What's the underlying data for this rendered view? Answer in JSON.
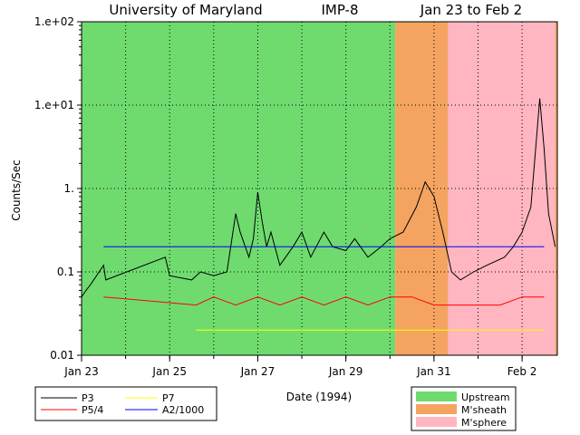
{
  "chart_data": {
    "type": "line",
    "title_parts": [
      "University of Maryland",
      "IMP-8",
      "Jan 23 to Feb 2"
    ],
    "xlabel": "Date (1994)",
    "ylabel": "Counts/Sec",
    "yscale": "log",
    "ylim": [
      0.01,
      100
    ],
    "xlim_days": [
      0,
      10.8
    ],
    "x_ticks": [
      {
        "day": 0,
        "label": "Jan 23"
      },
      {
        "day": 2,
        "label": "Jan 25"
      },
      {
        "day": 4,
        "label": "Jan 27"
      },
      {
        "day": 6,
        "label": "Jan 29"
      },
      {
        "day": 8,
        "label": "Jan 31"
      },
      {
        "day": 10,
        "label": "Feb 2"
      }
    ],
    "y_ticks": [
      {
        "value": 100,
        "label": "1.e+02"
      },
      {
        "value": 10,
        "label": "1.e+01"
      },
      {
        "value": 1,
        "label": "1."
      },
      {
        "value": 0.1,
        "label": "0.1"
      },
      {
        "value": 0.01,
        "label": "0.01"
      }
    ],
    "regions": [
      {
        "name": "Upstream",
        "start_day": 0,
        "end_day": 7.12,
        "color": "#6fdb6f"
      },
      {
        "name": "M'sheath",
        "start_day": 7.12,
        "end_day": 8.32,
        "color": "#f4a460"
      },
      {
        "name": "M'sphere",
        "start_day": 8.32,
        "end_day": 10.75,
        "color": "#ffb6c1"
      },
      {
        "name": "M'sheath",
        "start_day": 10.75,
        "end_day": 10.8,
        "color": "#f4a460"
      }
    ],
    "series": [
      {
        "name": "P3",
        "color": "#000000",
        "points": [
          [
            0.0,
            0.05
          ],
          [
            0.1,
            0.06
          ],
          [
            0.2,
            0.07
          ],
          [
            0.5,
            0.12
          ],
          [
            0.55,
            0.08
          ],
          [
            1.9,
            0.15
          ],
          [
            2.0,
            0.09
          ],
          [
            2.5,
            0.08
          ],
          [
            2.7,
            0.1
          ],
          [
            3.0,
            0.09
          ],
          [
            3.3,
            0.1
          ],
          [
            3.5,
            0.5
          ],
          [
            3.6,
            0.3
          ],
          [
            3.8,
            0.15
          ],
          [
            3.9,
            0.25
          ],
          [
            4.0,
            0.9
          ],
          [
            4.1,
            0.4
          ],
          [
            4.2,
            0.2
          ],
          [
            4.3,
            0.3
          ],
          [
            4.5,
            0.12
          ],
          [
            4.8,
            0.2
          ],
          [
            5.0,
            0.3
          ],
          [
            5.2,
            0.15
          ],
          [
            5.5,
            0.3
          ],
          [
            5.7,
            0.2
          ],
          [
            6.0,
            0.18
          ],
          [
            6.2,
            0.25
          ],
          [
            6.5,
            0.15
          ],
          [
            6.8,
            0.2
          ],
          [
            7.0,
            0.25
          ],
          [
            7.3,
            0.3
          ],
          [
            7.6,
            0.6
          ],
          [
            7.8,
            1.2
          ],
          [
            8.0,
            0.8
          ],
          [
            8.2,
            0.3
          ],
          [
            8.4,
            0.1
          ],
          [
            8.6,
            0.08
          ],
          [
            8.9,
            0.1
          ],
          [
            9.2,
            0.12
          ],
          [
            9.6,
            0.15
          ],
          [
            9.8,
            0.2
          ],
          [
            10.0,
            0.3
          ],
          [
            10.2,
            0.6
          ],
          [
            10.4,
            12
          ],
          [
            10.5,
            3
          ],
          [
            10.6,
            0.5
          ],
          [
            10.75,
            0.2
          ]
        ]
      },
      {
        "name": "P5/4",
        "color": "#ff0000",
        "points": [
          [
            0.5,
            0.05
          ],
          [
            2.6,
            0.04
          ],
          [
            3.0,
            0.05
          ],
          [
            3.5,
            0.04
          ],
          [
            4.0,
            0.05
          ],
          [
            4.5,
            0.04
          ],
          [
            5.0,
            0.05
          ],
          [
            5.5,
            0.04
          ],
          [
            6.0,
            0.05
          ],
          [
            6.5,
            0.04
          ],
          [
            7.0,
            0.05
          ],
          [
            7.5,
            0.05
          ],
          [
            8.0,
            0.04
          ],
          [
            8.5,
            0.04
          ],
          [
            9.0,
            0.04
          ],
          [
            9.5,
            0.04
          ],
          [
            10.0,
            0.05
          ],
          [
            10.5,
            0.05
          ]
        ]
      },
      {
        "name": "P7",
        "color": "#ffff00",
        "points": [
          [
            2.6,
            0.02
          ],
          [
            3.0,
            0.02
          ],
          [
            3.5,
            0.02
          ],
          [
            4.0,
            0.02
          ],
          [
            4.5,
            0.02
          ],
          [
            5.0,
            0.02
          ],
          [
            5.5,
            0.02
          ],
          [
            6.0,
            0.02
          ],
          [
            6.5,
            0.02
          ],
          [
            7.0,
            0.02
          ],
          [
            7.5,
            0.02
          ],
          [
            8.0,
            0.02
          ],
          [
            8.5,
            0.02
          ],
          [
            9.0,
            0.02
          ],
          [
            9.5,
            0.02
          ],
          [
            10.0,
            0.02
          ],
          [
            10.5,
            0.02
          ]
        ]
      },
      {
        "name": "A2/1000",
        "color": "#0000ff",
        "points": [
          [
            0.5,
            0.2
          ],
          [
            1.5,
            0.2
          ],
          [
            2.0,
            0.2
          ],
          [
            2.5,
            0.2
          ],
          [
            3.0,
            0.2
          ],
          [
            4.0,
            0.2
          ],
          [
            5.0,
            0.2
          ],
          [
            6.0,
            0.2
          ],
          [
            7.0,
            0.2
          ],
          [
            8.0,
            0.2
          ],
          [
            8.5,
            0.2
          ],
          [
            9.0,
            0.2
          ],
          [
            9.5,
            0.2
          ],
          [
            10.0,
            0.2
          ],
          [
            10.5,
            0.2
          ]
        ]
      }
    ]
  }
}
